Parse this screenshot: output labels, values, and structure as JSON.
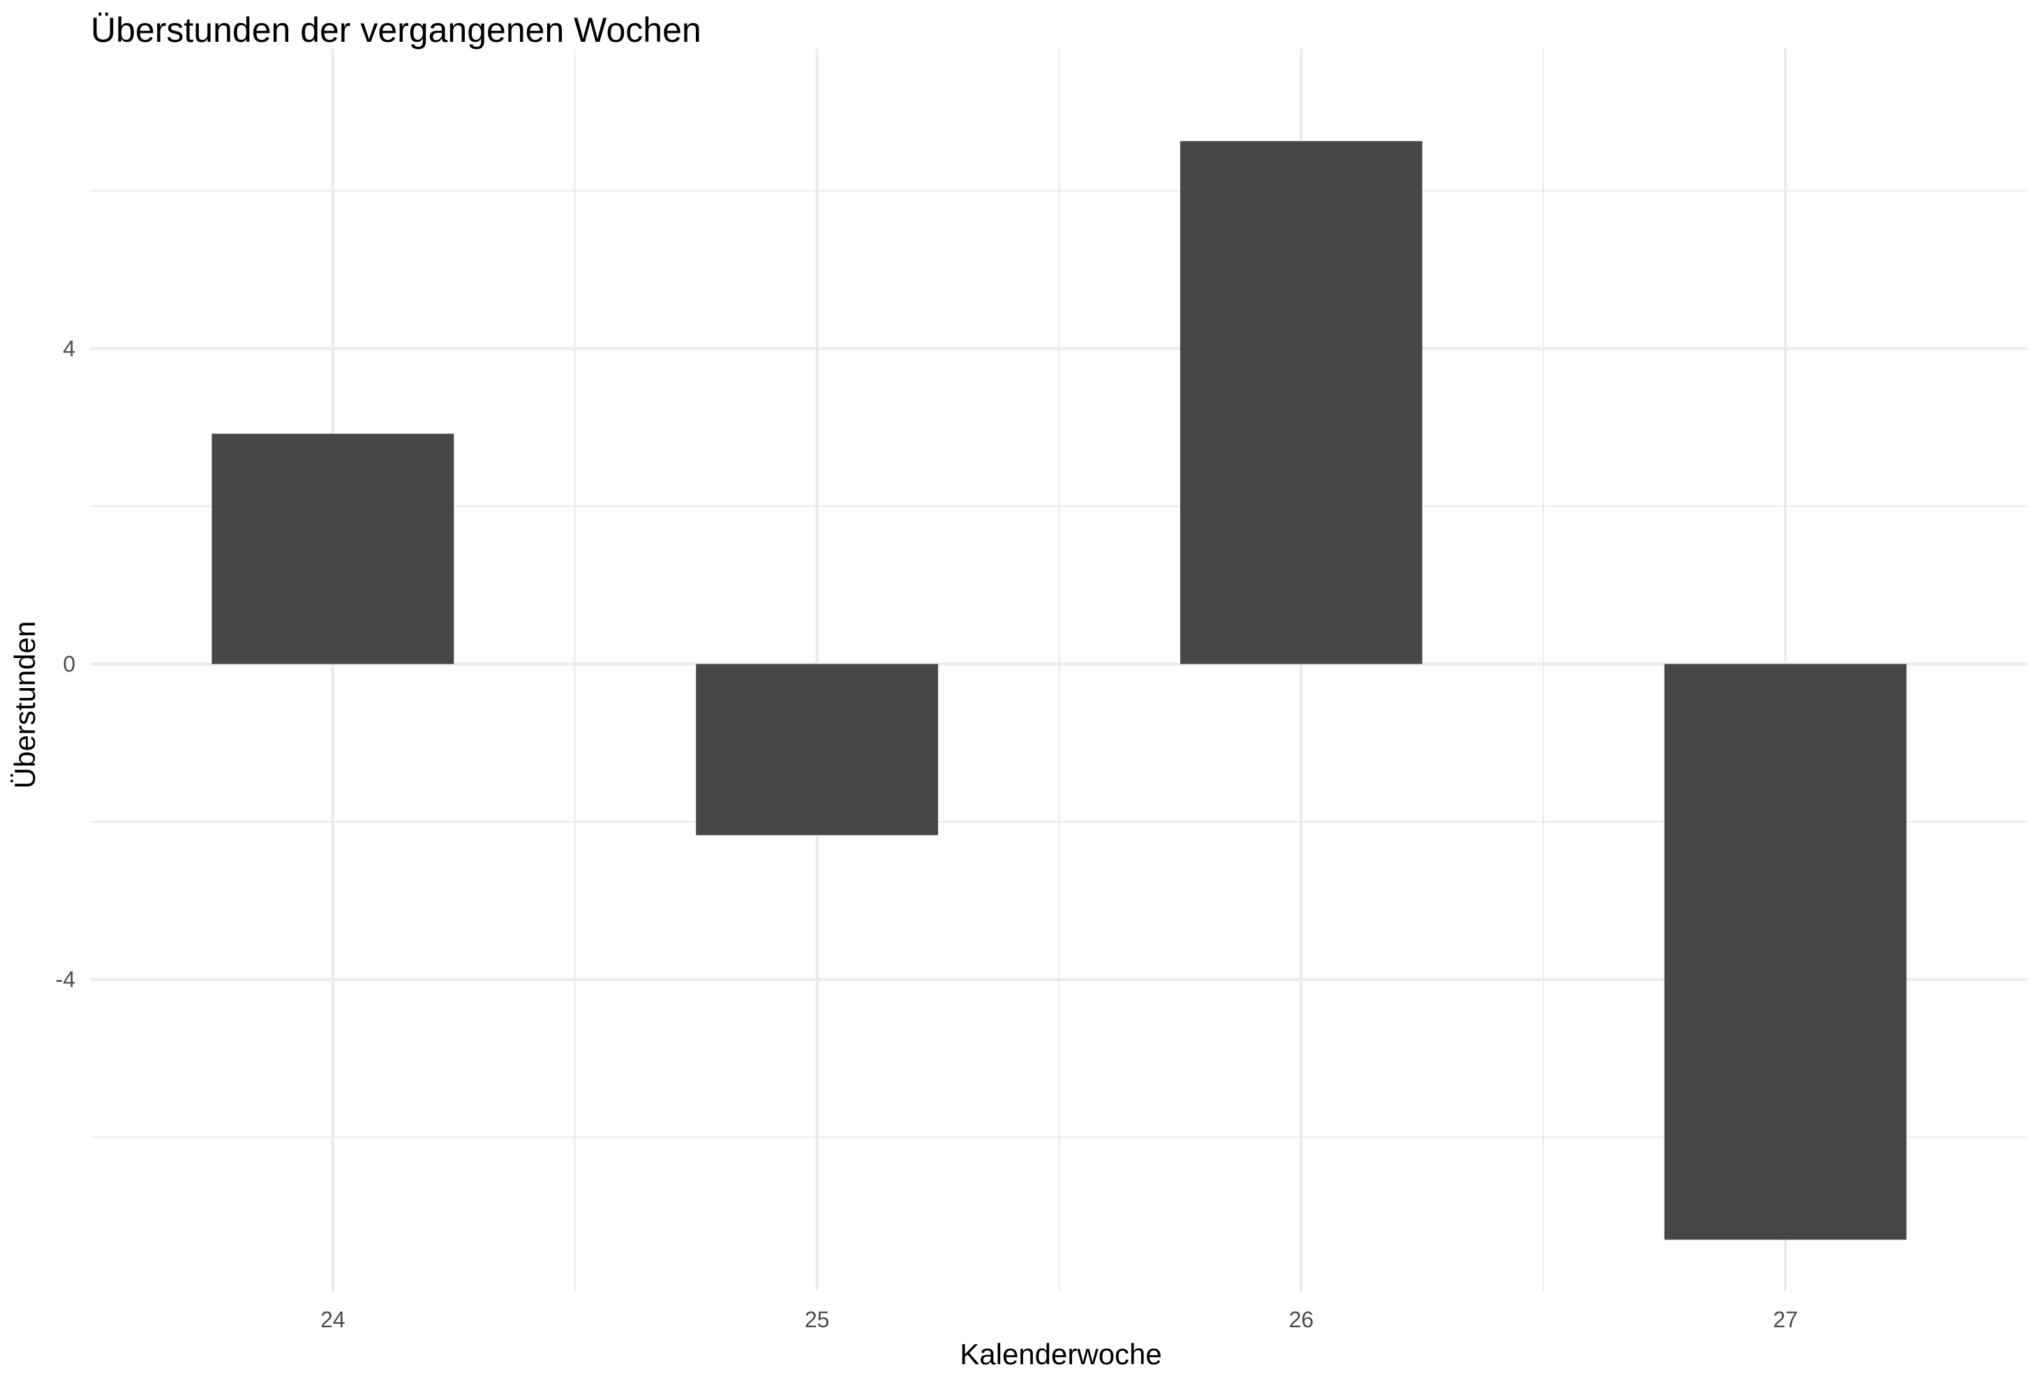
{
  "chart_data": {
    "type": "bar",
    "title": "Überstunden der vergangenen Wochen",
    "xlabel": "Kalenderwoche",
    "ylabel": "Überstunden",
    "categories": [
      "24",
      "25",
      "26",
      "27"
    ],
    "values": [
      2.92,
      -2.17,
      6.63,
      -7.3
    ],
    "ylim": [
      -7.95,
      7.8
    ],
    "yticks": [
      -4,
      0,
      4
    ],
    "yticks_minor": [
      -6,
      -2,
      2,
      6
    ],
    "ytick_labels": [
      "-4",
      "0",
      "4"
    ],
    "grid": true,
    "legend": "none",
    "bar_color": "#474747",
    "grid_color": "#ebebeb"
  }
}
